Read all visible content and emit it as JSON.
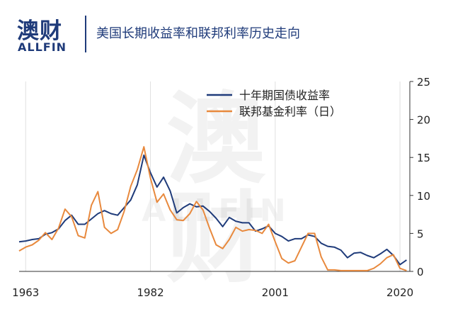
{
  "header": {
    "logo_cn": "澳财",
    "logo_en": "ALLFIN",
    "title": "美国长期收益率和联邦利率历史走向"
  },
  "watermark": {
    "cn": "澳财",
    "en": "ALLFIN"
  },
  "colors": {
    "brand": "#1f3b7a",
    "treasury": "#1f3b7a",
    "fedfunds": "#e8893d",
    "grid": "#e0e0e0"
  },
  "chart_data": {
    "type": "line",
    "title": "",
    "xlabel": "",
    "ylabel": "",
    "xlim": [
      1962,
      2021.5
    ],
    "ylim": [
      0,
      25
    ],
    "x_ticks": [
      "1963",
      "1982",
      "2001",
      "2020"
    ],
    "y_ticks": [
      0,
      5,
      10,
      15,
      20,
      25
    ],
    "y_axis_position": "right",
    "grid": "vertical",
    "legend_position": "top-right",
    "series": [
      {
        "name": "十年期国债收益率",
        "color": "#1f3b7a",
        "x": [
          1962,
          1963,
          1964,
          1965,
          1966,
          1967,
          1968,
          1969,
          1970,
          1971,
          1972,
          1973,
          1974,
          1975,
          1976,
          1977,
          1978,
          1979,
          1980,
          1981,
          1982,
          1983,
          1984,
          1985,
          1986,
          1987,
          1988,
          1989,
          1990,
          1991,
          1992,
          1993,
          1994,
          1995,
          1996,
          1997,
          1998,
          1999,
          2000,
          2001,
          2002,
          2003,
          2004,
          2005,
          2006,
          2007,
          2008,
          2009,
          2010,
          2011,
          2012,
          2013,
          2014,
          2015,
          2016,
          2017,
          2018,
          2019,
          2020,
          2021
        ],
        "values": [
          3.9,
          4.0,
          4.2,
          4.3,
          4.9,
          5.1,
          5.6,
          6.7,
          7.4,
          6.2,
          6.2,
          6.9,
          7.6,
          8.0,
          7.6,
          7.4,
          8.4,
          9.4,
          11.4,
          15.3,
          13.0,
          11.1,
          12.4,
          10.6,
          7.7,
          8.4,
          8.9,
          8.5,
          8.6,
          7.9,
          7.0,
          5.9,
          7.1,
          6.6,
          6.4,
          6.4,
          5.3,
          5.6,
          6.0,
          5.0,
          4.6,
          4.0,
          4.3,
          4.3,
          4.8,
          4.6,
          3.7,
          3.3,
          3.2,
          2.8,
          1.8,
          2.4,
          2.5,
          2.1,
          1.8,
          2.3,
          2.9,
          2.1,
          0.9,
          1.5
        ]
      },
      {
        "name": "联邦基金利率（日）",
        "color": "#e8893d",
        "x": [
          1962,
          1963,
          1964,
          1965,
          1966,
          1967,
          1968,
          1969,
          1970,
          1971,
          1972,
          1973,
          1974,
          1975,
          1976,
          1977,
          1978,
          1979,
          1980,
          1981,
          1982,
          1983,
          1984,
          1985,
          1986,
          1987,
          1988,
          1989,
          1990,
          1991,
          1992,
          1993,
          1994,
          1995,
          1996,
          1997,
          1998,
          1999,
          2000,
          2001,
          2002,
          2003,
          2004,
          2005,
          2006,
          2007,
          2008,
          2009,
          2010,
          2011,
          2012,
          2013,
          2014,
          2015,
          2016,
          2017,
          2018,
          2019,
          2020,
          2021
        ],
        "values": [
          2.7,
          3.2,
          3.5,
          4.1,
          5.1,
          4.2,
          5.7,
          8.2,
          7.2,
          4.7,
          4.4,
          8.7,
          10.5,
          5.8,
          5.0,
          5.5,
          7.9,
          11.2,
          13.4,
          16.4,
          12.3,
          9.1,
          10.2,
          8.1,
          6.8,
          6.7,
          7.6,
          9.2,
          8.1,
          5.7,
          3.5,
          3.0,
          4.2,
          5.8,
          5.3,
          5.5,
          5.4,
          5.0,
          6.2,
          3.9,
          1.7,
          1.1,
          1.4,
          3.2,
          5.0,
          5.0,
          1.9,
          0.2,
          0.2,
          0.1,
          0.1,
          0.1,
          0.1,
          0.1,
          0.4,
          1.0,
          1.8,
          2.2,
          0.4,
          0.1
        ]
      }
    ]
  }
}
